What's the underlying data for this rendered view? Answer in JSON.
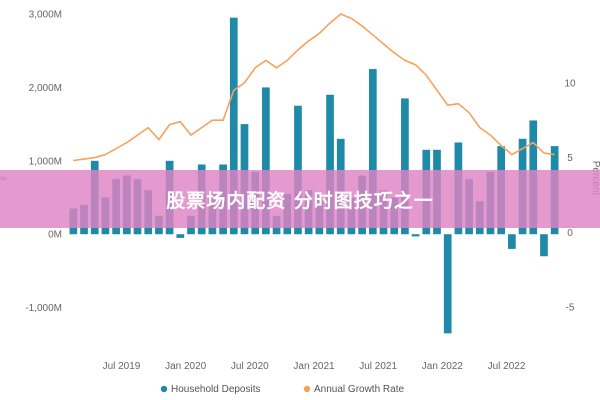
{
  "chart_data": {
    "type": "bar",
    "xlabel": "",
    "ylabel": "",
    "ylabel_right": "Percent",
    "y_axis": {
      "min": -1400,
      "max": 3000,
      "ticks": [
        3000,
        2000,
        1000,
        0,
        -1000
      ],
      "tick_labels": [
        "3,000M",
        "2,000M",
        "1,000M",
        "0M",
        "-1,000M"
      ]
    },
    "y2_axis": {
      "min": -7.0,
      "max": 14.6,
      "ticks": [
        10,
        5,
        0,
        -5
      ],
      "tick_labels": [
        "10",
        "5",
        "0",
        "-5"
      ]
    },
    "x_tick_labels": [
      "Jul 2019",
      "Jan 2020",
      "Jul 2020",
      "Jan 2021",
      "Jul 2021",
      "Jan 2022",
      "Jul 2022"
    ],
    "legend_position": "bottom",
    "series": [
      {
        "name": "Household Deposits",
        "kind": "bar",
        "color": "#1f8aa8",
        "values": [
          350,
          400,
          1000,
          500,
          750,
          800,
          750,
          600,
          250,
          1000,
          -50,
          250,
          950,
          550,
          950,
          2950,
          1500,
          850,
          2000,
          250,
          550,
          1750,
          600,
          550,
          1900,
          1300,
          500,
          800,
          2250,
          600,
          500,
          1850,
          -30,
          1150,
          1150,
          -1350,
          1250,
          750,
          450,
          850,
          1200,
          -200,
          1300,
          1550,
          -300,
          1200
        ]
      },
      {
        "name": "Annual Growth Rate",
        "kind": "line",
        "color": "#f5a35c",
        "values": [
          4.8,
          4.9,
          5.0,
          5.2,
          5.6,
          6.0,
          6.5,
          7.0,
          6.2,
          7.2,
          7.4,
          6.5,
          7.0,
          7.5,
          7.5,
          9.5,
          10.0,
          11.0,
          11.5,
          11.0,
          11.5,
          12.2,
          12.8,
          13.3,
          14.0,
          14.6,
          14.3,
          13.8,
          13.2,
          12.6,
          12.0,
          11.5,
          11.2,
          10.5,
          9.5,
          8.5,
          8.6,
          8.0,
          7.0,
          6.5,
          5.8,
          5.2,
          5.6,
          6.0,
          5.3,
          5.2
        ]
      }
    ]
  },
  "legend": {
    "items": [
      {
        "label": "Household Deposits",
        "color": "#1f8aa8"
      },
      {
        "label": "Annual Growth Rate",
        "color": "#f5a35c"
      }
    ]
  },
  "overlay": {
    "text": "股票场内配资 分时图技巧之一",
    "color": "#de82c4"
  },
  "left_axis_fragment": "ε"
}
